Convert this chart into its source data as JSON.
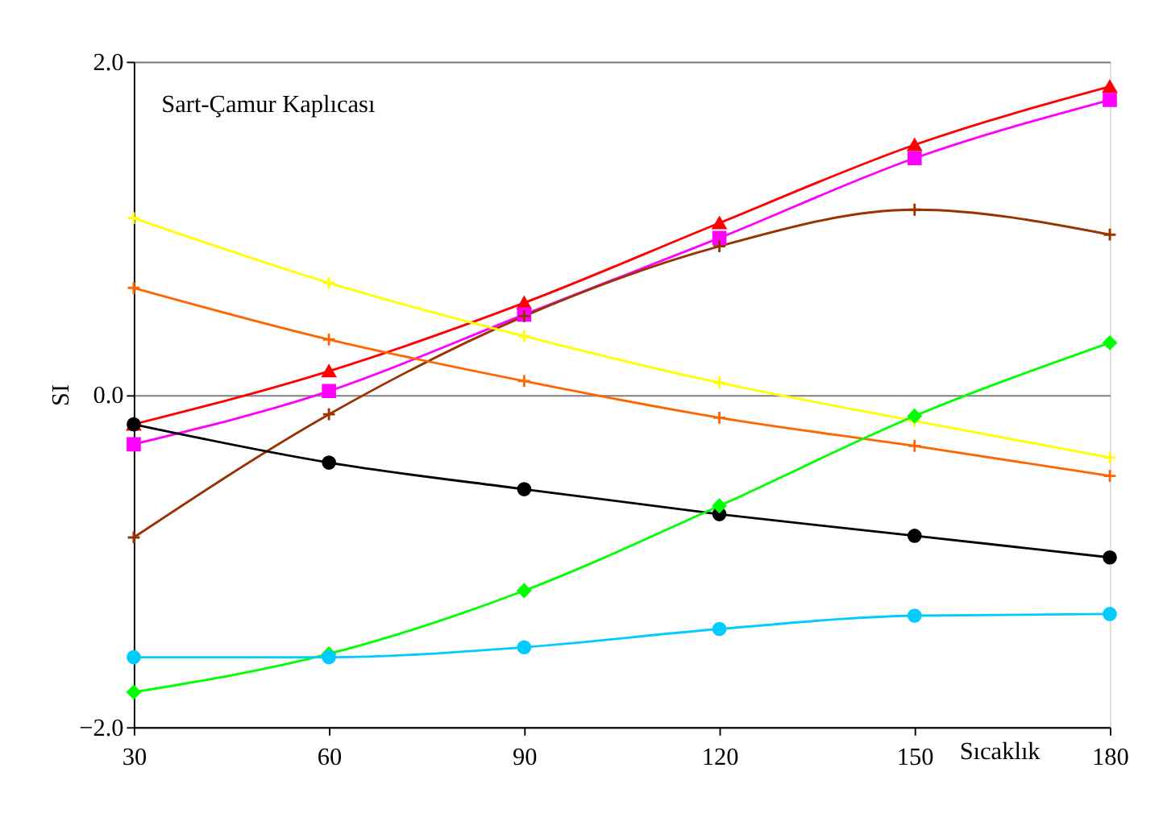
{
  "chart_data": {
    "type": "line",
    "title": "Sart-Çamur Kaplıcası",
    "xlabel": "Sıcaklık",
    "ylabel": "SI",
    "x": [
      30,
      60,
      90,
      120,
      150,
      180
    ],
    "series": [
      {
        "color": "#ff0000",
        "marker": "triangle",
        "values": [
          -0.18,
          0.14,
          0.55,
          1.03,
          1.5,
          1.85
        ]
      },
      {
        "color": "#ff00ff",
        "marker": "square",
        "values": [
          -0.3,
          0.02,
          0.48,
          0.94,
          1.42,
          1.77
        ]
      },
      {
        "color": "#993300",
        "marker": "cross",
        "values": [
          -0.86,
          -0.12,
          0.47,
          0.89,
          1.11,
          0.96
        ]
      },
      {
        "color": "#ffff00",
        "marker": "cross",
        "values": [
          1.06,
          0.67,
          0.35,
          0.07,
          -0.16,
          -0.38
        ]
      },
      {
        "color": "#ff6600",
        "marker": "cross",
        "values": [
          0.64,
          0.33,
          0.08,
          -0.14,
          -0.31,
          -0.49
        ]
      },
      {
        "color": "#000000",
        "marker": "circle",
        "values": [
          -0.18,
          -0.41,
          -0.57,
          -0.72,
          -0.85,
          -0.98
        ]
      },
      {
        "color": "#00ff00",
        "marker": "diamond",
        "values": [
          -1.79,
          -1.56,
          -1.18,
          -0.67,
          -0.13,
          0.31
        ]
      },
      {
        "color": "#00ccff",
        "marker": "circle",
        "values": [
          -1.58,
          -1.58,
          -1.52,
          -1.41,
          -1.33,
          -1.32
        ]
      }
    ],
    "xlim": [
      30,
      180
    ],
    "xticks": [
      30,
      60,
      90,
      120,
      150,
      180
    ],
    "ylim": [
      -2,
      2
    ],
    "yticks": [
      {
        "value": -2,
        "label": "−2.0"
      },
      {
        "value": 0,
        "label": "0.0"
      },
      {
        "value": 2,
        "label": "2.0"
      }
    ],
    "grid": "y",
    "legend": false,
    "line_style": "solid"
  }
}
